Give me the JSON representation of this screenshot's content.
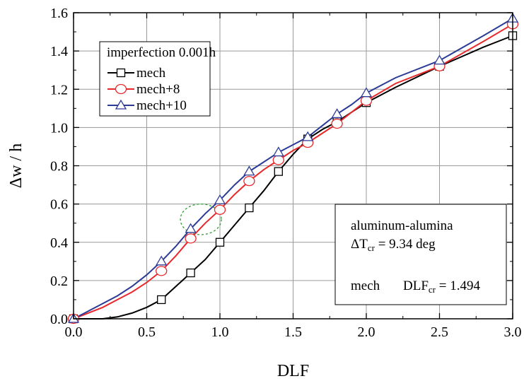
{
  "chart_data": {
    "type": "line",
    "xlabel": "DLF",
    "ylabel": "Δw / h",
    "xlim": [
      0,
      3
    ],
    "ylim": [
      0,
      1.6
    ],
    "xticks": [
      "0.0",
      "0.5",
      "1.0",
      "1.5",
      "2.0",
      "2.5",
      "3.0"
    ],
    "yticks": [
      "0.0",
      "0.2",
      "0.4",
      "0.6",
      "0.8",
      "1.0",
      "1.2",
      "1.4",
      "1.6"
    ],
    "grid": true,
    "legend": {
      "title": "imperfection 0.001h",
      "placement": "top-left"
    },
    "series": [
      {
        "name": "mech",
        "color": "#000000",
        "marker": "square",
        "x": [
          0,
          0.2,
          0.3,
          0.4,
          0.5,
          0.6,
          0.7,
          0.8,
          0.9,
          1.0,
          1.1,
          1.2,
          1.3,
          1.4,
          1.5,
          1.6,
          1.7,
          1.8,
          1.9,
          2.0,
          2.2,
          2.5,
          2.8,
          3.0
        ],
        "y": [
          0,
          0.0,
          0.01,
          0.03,
          0.06,
          0.1,
          0.17,
          0.24,
          0.31,
          0.4,
          0.49,
          0.58,
          0.67,
          0.77,
          0.86,
          0.94,
          0.99,
          1.03,
          1.08,
          1.13,
          1.21,
          1.32,
          1.42,
          1.48
        ],
        "marker_x": [
          0,
          0.6,
          0.8,
          1.0,
          1.2,
          1.4,
          1.6,
          1.8,
          2.0,
          2.5,
          3.0
        ],
        "marker_y": [
          0,
          0.1,
          0.24,
          0.4,
          0.58,
          0.77,
          0.94,
          1.03,
          1.13,
          1.32,
          1.48
        ]
      },
      {
        "name": "mech+8",
        "color": "#e8282b",
        "marker": "circle",
        "x": [
          0,
          0.1,
          0.2,
          0.3,
          0.4,
          0.5,
          0.6,
          0.7,
          0.8,
          0.9,
          1.0,
          1.1,
          1.2,
          1.3,
          1.4,
          1.5,
          1.6,
          1.7,
          1.8,
          1.9,
          2.0,
          2.2,
          2.5,
          2.8,
          3.0
        ],
        "y": [
          0,
          0.03,
          0.06,
          0.1,
          0.14,
          0.19,
          0.25,
          0.33,
          0.42,
          0.5,
          0.57,
          0.65,
          0.72,
          0.78,
          0.83,
          0.88,
          0.92,
          0.97,
          1.02,
          1.08,
          1.14,
          1.23,
          1.32,
          1.45,
          1.54
        ],
        "marker_x": [
          0,
          0.6,
          0.8,
          1.0,
          1.2,
          1.4,
          1.6,
          1.8,
          2.0,
          2.5,
          3.0
        ],
        "marker_y": [
          0,
          0.25,
          0.42,
          0.57,
          0.72,
          0.83,
          0.92,
          1.02,
          1.14,
          1.32,
          1.54
        ]
      },
      {
        "name": "mech+10",
        "color": "#2c3b96",
        "marker": "triangle",
        "x": [
          0,
          0.1,
          0.2,
          0.3,
          0.4,
          0.5,
          0.6,
          0.7,
          0.8,
          0.9,
          1.0,
          1.1,
          1.2,
          1.3,
          1.4,
          1.5,
          1.6,
          1.7,
          1.8,
          1.9,
          2.0,
          2.2,
          2.5,
          2.8,
          3.0
        ],
        "y": [
          0,
          0.04,
          0.08,
          0.12,
          0.17,
          0.23,
          0.3,
          0.38,
          0.47,
          0.55,
          0.62,
          0.7,
          0.77,
          0.82,
          0.87,
          0.91,
          0.95,
          1.01,
          1.07,
          1.12,
          1.18,
          1.26,
          1.35,
          1.48,
          1.57
        ],
        "marker_x": [
          0,
          0.6,
          0.8,
          1.0,
          1.2,
          1.4,
          1.6,
          1.8,
          2.0,
          2.5,
          3.0
        ],
        "marker_y": [
          0,
          0.3,
          0.47,
          0.62,
          0.77,
          0.87,
          0.95,
          1.07,
          1.18,
          1.35,
          1.57
        ]
      }
    ],
    "annotation": {
      "line1": "aluminum-alumina",
      "line2_prefix": "ΔT",
      "line2_sub": "cr",
      "line2_suffix": " = 9.34 deg",
      "line3_label": "mech",
      "line3_prefix": "DLF",
      "line3_sub": "cr",
      "line3_suffix": " = 1.494"
    },
    "highlight_ellipse": {
      "cx": 0.87,
      "cy": 0.52,
      "rx": 0.14,
      "ry": 0.08,
      "color": "#2e9e2e"
    }
  }
}
